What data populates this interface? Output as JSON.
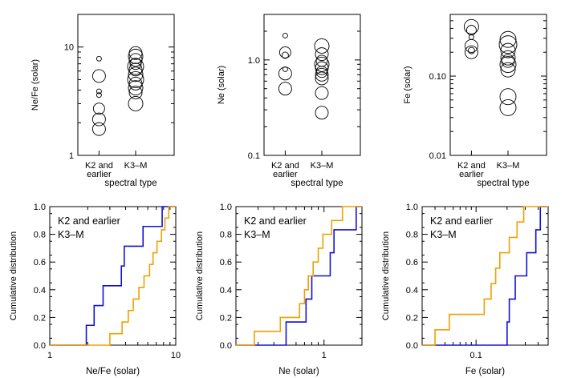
{
  "colors": {
    "k2": "#1010d8",
    "k3m": "#f0a000",
    "axis": "#000000"
  },
  "chart_data": [
    {
      "type": "scatter",
      "ylabel": "Ne/Fe (solar)",
      "xlabel": "spectral type",
      "yscale": "log",
      "ylim": [
        1,
        20
      ],
      "yticks": [
        "1",
        "10"
      ],
      "categories": [
        "K2 and\nearlier",
        "K3–M"
      ],
      "series": [
        {
          "category": "K2 and\nearlier",
          "y": [
            7.8,
            5.4,
            3.9,
            3.6,
            2.7,
            2.15,
            1.75
          ],
          "r": [
            3,
            8,
            3,
            3,
            7,
            8,
            8
          ]
        },
        {
          "category": "K3–M",
          "y": [
            8.8,
            8.2,
            7.6,
            7.0,
            6.6,
            6.2,
            5.6,
            5.0,
            4.6,
            4.2,
            3.8,
            3.0
          ],
          "r": [
            8,
            9,
            8,
            7,
            10,
            8,
            9,
            10,
            8,
            9,
            8,
            9
          ]
        }
      ]
    },
    {
      "type": "scatter",
      "ylabel": "Ne (solar)",
      "xlabel": "spectral type",
      "yscale": "log",
      "ylim": [
        0.1,
        3
      ],
      "yticks": [
        "0.1",
        "1.0"
      ],
      "categories": [
        "K2 and\nearlier",
        "K3–M"
      ],
      "series": [
        {
          "category": "K2 and\nearlier",
          "y": [
            1.8,
            1.2,
            1.12,
            0.8,
            0.72,
            0.5
          ],
          "r": [
            3,
            7,
            4,
            3,
            8,
            8
          ]
        },
        {
          "category": "K3–M",
          "y": [
            1.4,
            1.15,
            0.98,
            0.9,
            0.82,
            0.75,
            0.7,
            0.64,
            0.45,
            0.28
          ],
          "r": [
            9,
            8,
            7,
            9,
            8,
            7,
            8,
            8,
            8,
            8
          ]
        }
      ]
    },
    {
      "type": "scatter",
      "ylabel": "Fe (solar)",
      "xlabel": "spectral type",
      "yscale": "log",
      "ylim": [
        0.01,
        0.6
      ],
      "yticks": [
        "0.01",
        "0.10"
      ],
      "categories": [
        "K2 and\nearlier",
        "K3–M"
      ],
      "series": [
        {
          "category": "K2 and\nearlier",
          "y": [
            0.42,
            0.38,
            0.31,
            0.24,
            0.21,
            0.2
          ],
          "r": [
            9,
            6,
            3,
            8,
            4,
            8
          ]
        },
        {
          "category": "K3–M",
          "y": [
            0.29,
            0.25,
            0.21,
            0.17,
            0.155,
            0.14,
            0.12,
            0.055,
            0.04
          ],
          "r": [
            10,
            11,
            9,
            9,
            8,
            10,
            9,
            10,
            10
          ]
        }
      ]
    },
    {
      "type": "line",
      "step": true,
      "ylabel": "Cumulative distribution",
      "xlabel": "Ne/Fe (solar)",
      "xscale": "log",
      "xlim": [
        1,
        10
      ],
      "ylim": [
        0,
        1
      ],
      "xticks": [
        {
          "v": 1,
          "label": "1"
        },
        {
          "v": 10,
          "label": "10"
        }
      ],
      "yticks": [
        "0.0",
        "0.2",
        "0.4",
        "0.6",
        "0.8",
        "1.0"
      ],
      "legend_position": "top-left",
      "series": [
        {
          "name": "K2 and earlier",
          "x": [
            1.95,
            2.25,
            2.65,
            3.7,
            3.9,
            5.5,
            7.8
          ],
          "y": [
            0.143,
            0.286,
            0.429,
            0.571,
            0.714,
            0.857,
            1.0
          ]
        },
        {
          "name": "K3–M",
          "x": [
            3.0,
            3.75,
            4.2,
            4.6,
            5.1,
            5.6,
            6.2,
            6.6,
            7.1,
            7.7,
            8.2,
            8.8
          ],
          "y": [
            0.083,
            0.167,
            0.25,
            0.333,
            0.417,
            0.5,
            0.583,
            0.667,
            0.75,
            0.833,
            0.917,
            1.0
          ]
        }
      ]
    },
    {
      "type": "line",
      "step": true,
      "ylabel": "Cumulative distribution",
      "xlabel": "Ne (solar)",
      "xscale": "log",
      "xlim": [
        0.2,
        2
      ],
      "ylim": [
        0,
        1
      ],
      "xticks": [
        {
          "v": 1,
          "label": "1"
        }
      ],
      "yticks": [
        "0.0",
        "0.2",
        "0.4",
        "0.6",
        "0.8",
        "1.0"
      ],
      "legend_position": "top-left",
      "series": [
        {
          "name": "K2 and earlier",
          "x": [
            0.5,
            0.72,
            0.8,
            1.12,
            1.2,
            1.8
          ],
          "y": [
            0.167,
            0.333,
            0.5,
            0.667,
            0.833,
            1.0
          ]
        },
        {
          "name": "K3–M",
          "x": [
            0.28,
            0.45,
            0.64,
            0.7,
            0.75,
            0.82,
            0.9,
            0.98,
            1.15,
            1.4
          ],
          "y": [
            0.1,
            0.2,
            0.3,
            0.4,
            0.5,
            0.6,
            0.7,
            0.8,
            0.9,
            1.0
          ]
        }
      ]
    },
    {
      "type": "line",
      "step": true,
      "ylabel": "Cumulative distribution",
      "xlabel": "Fe (solar)",
      "xscale": "log",
      "xlim": [
        0.03,
        0.5
      ],
      "ylim": [
        0,
        1
      ],
      "xticks": [
        {
          "v": 0.1,
          "label": "0.1"
        }
      ],
      "yticks": [
        "0.0",
        "0.2",
        "0.4",
        "0.6",
        "0.8",
        "1.0"
      ],
      "legend_position": "top-left",
      "series": [
        {
          "name": "K2 and earlier",
          "x": [
            0.2,
            0.21,
            0.24,
            0.31,
            0.38,
            0.42
          ],
          "y": [
            0.167,
            0.333,
            0.5,
            0.667,
            0.833,
            1.0
          ]
        },
        {
          "name": "K3–M",
          "x": [
            0.04,
            0.055,
            0.12,
            0.14,
            0.155,
            0.17,
            0.21,
            0.25,
            0.29
          ],
          "y": [
            0.111,
            0.222,
            0.333,
            0.444,
            0.556,
            0.667,
            0.778,
            0.889,
            1.0
          ]
        }
      ]
    }
  ]
}
